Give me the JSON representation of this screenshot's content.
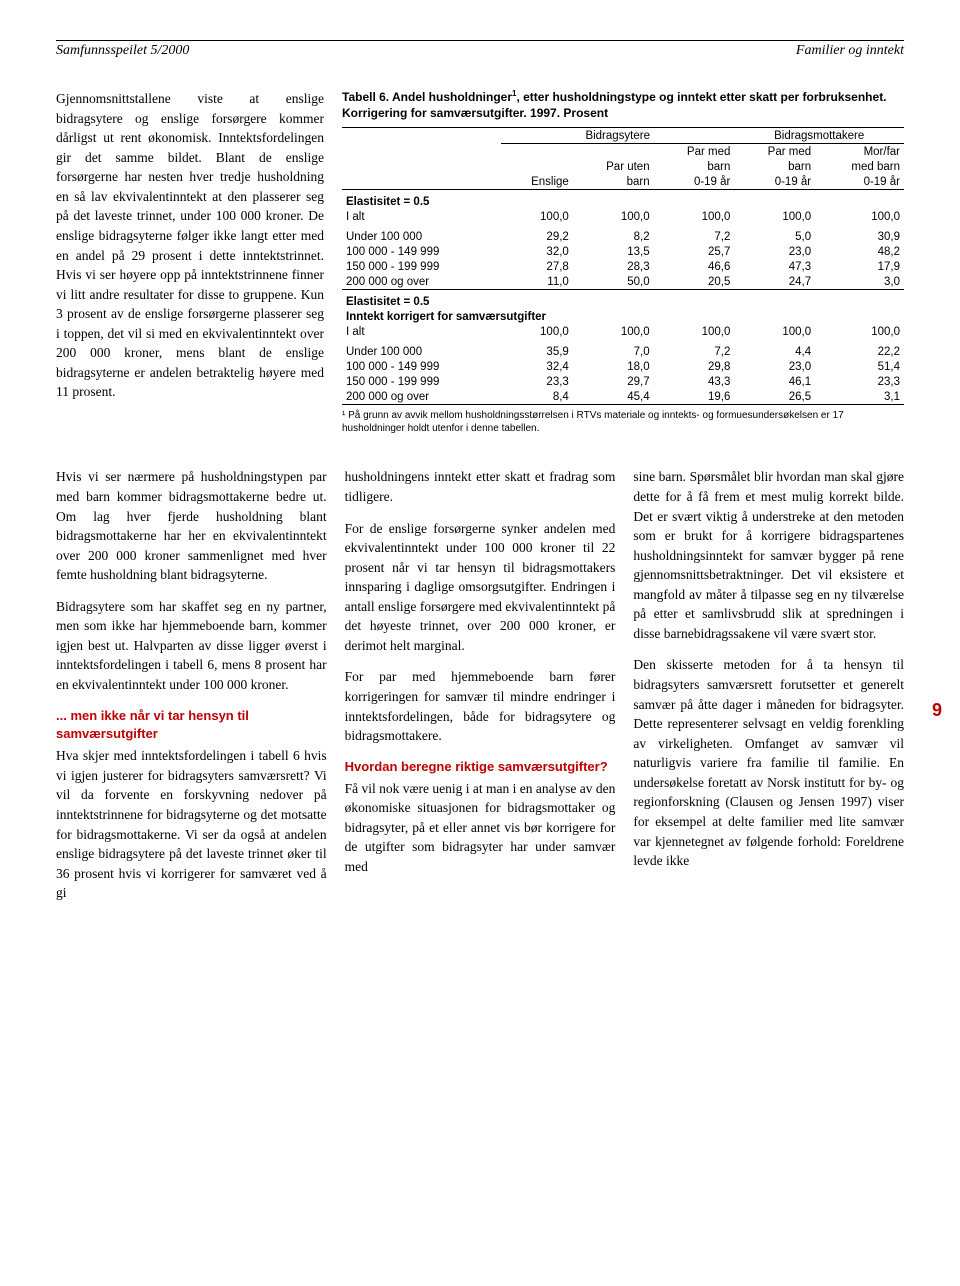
{
  "header": {
    "left": "Samfunnsspeilet 5/2000",
    "right": "Familier og inntekt"
  },
  "page_number": "9",
  "upper_left_text": "Gjennomsnittstallene viste at enslige bidragsytere og enslige forsørgere kommer dårligst ut rent økonomisk. Inntektsfordelingen gir det samme bildet. Blant de enslige forsørgerne har nesten hver tredje husholdning en så lav ekvivalentinntekt at den plasserer seg på det laveste trinnet, under 100 000 kroner. De enslige bidragsyterne følger ikke langt etter med en andel på 29 prosent i dette inntektstrinnet. Hvis vi ser høyere opp på inntektstrinnene finner vi litt andre resultater for disse to gruppene. Kun 3 prosent av de enslige forsørgerne plasserer seg i toppen, det vil si med en ekvivalentinntekt over 200 000 kroner, mens blant de enslige bidragsyterne er andelen betraktelig høyere med 11 prosent.",
  "table": {
    "title": "Tabell 6. Andel husholdninger¹, etter husholdningstype og inntekt etter skatt per forbruksenhet. Korrigering for samværsutgifter. 1997. Prosent",
    "group_headers": {
      "g1": "Bidragsytere",
      "g2": "Bidragsmottakere"
    },
    "col_headers": {
      "c1": "Enslige",
      "c2a": "Par uten",
      "c2b": "barn",
      "c3a": "Par med",
      "c3b": "barn",
      "c3c": "0-19 år",
      "c4a": "Par med",
      "c4b": "barn",
      "c4c": "0-19 år",
      "c5a": "Mor/far",
      "c5b": "med barn",
      "c5c": "0-19 år"
    },
    "section1_label": "Elastisitet = 0.5",
    "rows1": [
      {
        "label": "I alt",
        "v": [
          "100,0",
          "100,0",
          "100,0",
          "100,0",
          "100,0"
        ]
      },
      {
        "label": "Under 100 000",
        "v": [
          "29,2",
          "8,2",
          "7,2",
          "5,0",
          "30,9"
        ],
        "gap": true
      },
      {
        "label": "100 000 - 149 999",
        "v": [
          "32,0",
          "13,5",
          "25,7",
          "23,0",
          "48,2"
        ]
      },
      {
        "label": "150 000 - 199 999",
        "v": [
          "27,8",
          "28,3",
          "46,6",
          "47,3",
          "17,9"
        ]
      },
      {
        "label": "200 000 og over",
        "v": [
          "11,0",
          "50,0",
          "20,5",
          "24,7",
          "3,0"
        ]
      }
    ],
    "section2_label_a": "Elastisitet = 0.5",
    "section2_label_b": "Inntekt korrigert for samværsutgifter",
    "rows2": [
      {
        "label": "I alt",
        "v": [
          "100,0",
          "100,0",
          "100,0",
          "100,0",
          "100,0"
        ]
      },
      {
        "label": "Under 100 000",
        "v": [
          "35,9",
          "7,0",
          "7,2",
          "4,4",
          "22,2"
        ],
        "gap": true
      },
      {
        "label": "100 000 - 149 999",
        "v": [
          "32,4",
          "18,0",
          "29,8",
          "23,0",
          "51,4"
        ]
      },
      {
        "label": "150 000 - 199 999",
        "v": [
          "23,3",
          "29,7",
          "43,3",
          "46,1",
          "23,3"
        ]
      },
      {
        "label": "200 000 og over",
        "v": [
          "8,4",
          "45,4",
          "19,6",
          "26,5",
          "3,1"
        ]
      }
    ],
    "footnote": "¹ På grunn av avvik mellom husholdningsstørrelsen i RTVs materiale og inntekts- og formuesundersøkelsen er 17 husholdninger holdt utenfor i denne tabellen."
  },
  "body": {
    "c1p1": "Hvis vi ser nærmere på husholdningstypen par med barn kommer bidragsmottakerne bedre ut. Om lag hver fjerde husholdning blant bidragsmottakerne har her en ekvivalentinntekt over 200 000 kroner sammenlignet med hver femte husholdning blant bidragsyterne.",
    "c1p2": "Bidragsytere som har skaffet seg en ny partner, men som ikke har hjemmeboende barn, kommer igjen best ut. Halvparten av disse ligger øverst i inntektsfordelingen i tabell 6, mens 8 prosent har en ekvivalentinntekt under 100 000 kroner.",
    "c1sub": "... men ikke når vi tar hensyn til samværsutgifter",
    "c1p3": "Hva skjer med inntektsfordelingen i tabell 6 hvis vi igjen justerer for bidragsyters samværsrett? Vi vil da forvente en forskyvning nedover på inntektstrinnene for bidragsyterne og det motsatte for bidragsmottakerne. Vi ser da også at andelen enslige bidragsytere på det laveste trinnet øker til 36 prosent hvis vi korrigerer for samværet ved å gi",
    "c2p1": "husholdningens inntekt etter skatt et fradrag som tidligere.",
    "c2p2": "For de enslige forsørgerne synker andelen med ekvivalentinntekt under 100 000 kroner til 22 prosent når vi tar hensyn til bidragsmottakers innsparing i daglige omsorgsutgifter. Endringen i antall enslige forsørgere med ekvivalentinntekt på det høyeste trinnet, over 200 000 kroner, er derimot helt marginal.",
    "c2p3": "For par med hjemmeboende barn fører korrigeringen for samvær til mindre endringer i inntektsfordelingen, både for bidragsytere og bidragsmottakere.",
    "c2sub": "Hvordan beregne riktige samværsutgifter?",
    "c2p4": "Få vil nok være uenig i at man i en analyse av den økonomiske situasjonen for bidragsmottaker og bidragsyter, på et eller annet vis bør korrigere for de utgifter som bidragsyter har under samvær med",
    "c3p1": "sine barn. Spørsmålet blir hvordan man skal gjøre dette for å få frem et mest mulig korrekt bilde. Det er svært viktig å understreke at den metoden som er brukt for å korrigere bidragspartenes husholdningsinntekt for samvær bygger på rene gjennomsnittsbetraktninger. Det vil eksistere et mangfold av måter å tilpasse seg en ny tilværelse på etter et samlivsbrudd slik at spredningen i disse barnebidragssakene vil være svært stor.",
    "c3p2": "Den skisserte metoden for å ta hensyn til bidragsyters samværsrett forutsetter et generelt samvær på åtte dager i måneden for bidragsyter. Dette representerer selvsagt en veldig forenkling av virkeligheten. Omfanget av samvær vil naturligvis variere fra familie til familie. En undersøkelse foretatt av Norsk institutt for by- og regionforskning (Clausen og Jensen 1997) viser for eksempel at delte familier med lite samvær var kjennetegnet av følgende forhold: Foreldrene levde ikke"
  },
  "colors": {
    "accent": "#c00000",
    "text": "#000000",
    "bg": "#ffffff"
  }
}
